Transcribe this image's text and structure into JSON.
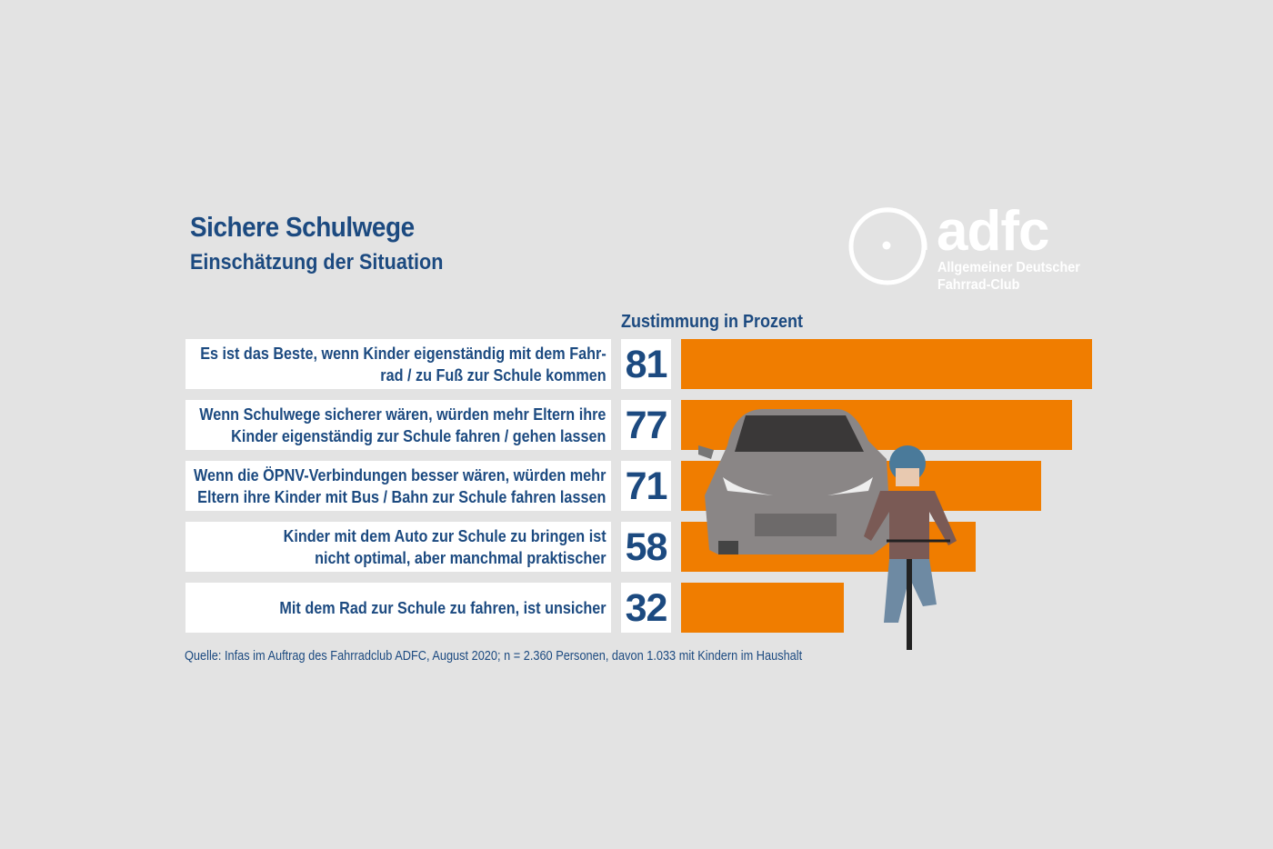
{
  "header": {
    "title": "Sichere Schulwege",
    "subtitle": "Einschätzung der Situation"
  },
  "logo": {
    "name": "adfc",
    "line1": "Allgemeiner Deutscher",
    "line2": "Fahrrad-Club"
  },
  "chart_data": {
    "type": "bar",
    "orientation": "horizontal",
    "xlabel": "Zustimmung in Prozent",
    "xlim": [
      0,
      81
    ],
    "grid": false,
    "bar_color": "#f07d00",
    "categories": [
      [
        "Es ist das Beste, wenn Kinder eigenständig mit dem Fahr-",
        "rad / zu Fuß zur Schule kommen"
      ],
      [
        "Wenn Schulwege sicherer wären, würden mehr Eltern ihre",
        "Kinder eigenständig zur Schule fahren / gehen lassen"
      ],
      [
        "Wenn die ÖPNV-Verbindungen besser wären, würden mehr",
        "Eltern ihre Kinder mit Bus / Bahn zur Schule fahren lassen"
      ],
      [
        "Kinder mit dem Auto zur Schule zu bringen ist",
        "nicht optimal, aber manchmal praktischer"
      ],
      [
        "Mit dem Rad zur Schule zu fahren, ist unsicher"
      ]
    ],
    "values": [
      81,
      77,
      71,
      58,
      32
    ],
    "value_labels": [
      "81",
      "77",
      "71",
      "58",
      "32"
    ]
  },
  "source": "Quelle: Infas im Auftrag des Fahrradclub ADFC, August 2020; n = 2.360 Personen, davon 1.033 mit Kindern im Haushalt",
  "colors": {
    "text": "#1c4a80",
    "bar": "#f07d00",
    "background": "#e3e3e3"
  }
}
